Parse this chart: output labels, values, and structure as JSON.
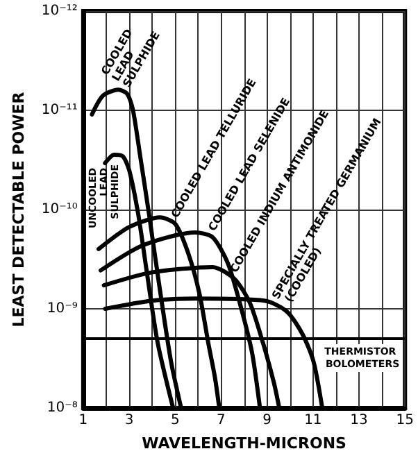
{
  "chart_data": {
    "type": "line",
    "xlabel": "WAVELENGTH-MICRONS",
    "ylabel": "LEAST DETECTABLE POWER",
    "log": "y",
    "grid": true,
    "legend": false,
    "marker": "none",
    "line_style": "solid",
    "xlim": [
      1,
      15
    ],
    "ylim": [
      1e-08,
      1e-12
    ],
    "xticks": [
      1,
      {
        "value": 2,
        "label": null
      },
      3,
      {
        "value": 4,
        "label": null
      },
      5,
      {
        "value": 6,
        "label": null
      },
      7,
      {
        "value": 8,
        "label": null
      },
      9,
      {
        "value": 10,
        "label": null
      },
      {
        "value": 11,
        "label": "11"
      },
      {
        "value": 12,
        "label": null
      },
      13,
      {
        "value": 14,
        "label": null
      },
      15
    ],
    "yticks": [
      {
        "value": 1e-12,
        "label": "10⁻¹²"
      },
      {
        "value": 1e-11,
        "label": "10⁻¹¹"
      },
      {
        "value": 1e-10,
        "label": "10⁻¹⁰"
      },
      {
        "value": 1e-09,
        "label": "10⁻⁹"
      },
      {
        "value": 1e-08,
        "label": "10⁻⁸"
      }
    ],
    "series": [
      {
        "name": "COOLED LEAD SULPHIDE",
        "color": "#000000",
        "x": [
          1.38,
          1.86,
          2.53,
          2.91,
          3.16,
          3.48,
          3.86,
          4.34,
          4.82,
          5.26
        ],
        "values": [
          1.1e-11,
          7.1e-12,
          6.2e-12,
          6.8e-12,
          9.8e-12,
          2.9e-11,
          1.1e-10,
          6.5e-10,
          3.4e-09,
          1e-08
        ]
      },
      {
        "name": "UNCOOLED LEAD SULPHIDE",
        "color": "#000000",
        "x": [
          1.95,
          2.34,
          2.72,
          3.0,
          3.39,
          3.77,
          4.24,
          4.91
        ],
        "values": [
          3.4e-11,
          2.8e-11,
          2.9e-11,
          4e-11,
          1.1e-10,
          4.3e-10,
          2.2e-09,
          1e-08
        ]
      },
      {
        "name": "COOLED LEAD TELLURIDE",
        "color": "#000000",
        "x": [
          1.67,
          3.0,
          4.34,
          5.01,
          5.58,
          6.06,
          6.44,
          6.73,
          6.92
        ],
        "values": [
          2.5e-10,
          1.5e-10,
          1.2e-10,
          1.4e-10,
          2.8e-10,
          7.1e-10,
          2.2e-09,
          4.9e-09,
          1e-08
        ]
      },
      {
        "name": "COOLED LEAD SELENIDE",
        "color": "#000000",
        "x": [
          1.76,
          3.58,
          5.87,
          6.63,
          7.3,
          7.87,
          8.35,
          8.69
        ],
        "values": [
          4.1e-10,
          2.3e-10,
          1.7e-10,
          1.9e-10,
          3.5e-10,
          9.8e-10,
          2.8e-09,
          1e-08
        ]
      },
      {
        "name": "COOLED INDIUM ANTIMONIDE",
        "color": "#000000",
        "x": [
          1.9,
          3.96,
          6.63,
          7.58,
          8.25,
          8.82,
          9.3,
          9.53
        ],
        "values": [
          5.8e-10,
          4.3e-10,
          3.8e-10,
          5e-10,
          8.7e-10,
          2.2e-09,
          5.6e-09,
          1e-08
        ]
      },
      {
        "name": "SPECIALLY TREATED GERMANIUM (COOLED)",
        "color": "#000000",
        "x": [
          1.95,
          3.96,
          5.87,
          8.92,
          9.87,
          10.54,
          11.02,
          11.4
        ],
        "values": [
          1e-09,
          8.3e-10,
          7.9e-10,
          8.3e-10,
          1.07e-09,
          1.8e-09,
          3.4e-09,
          1e-08
        ]
      }
    ],
    "ref_lines": [
      {
        "axis": "y",
        "value": 2e-09,
        "label": "THERMISTOR BOLOMETERS",
        "color": "#000000"
      }
    ]
  }
}
